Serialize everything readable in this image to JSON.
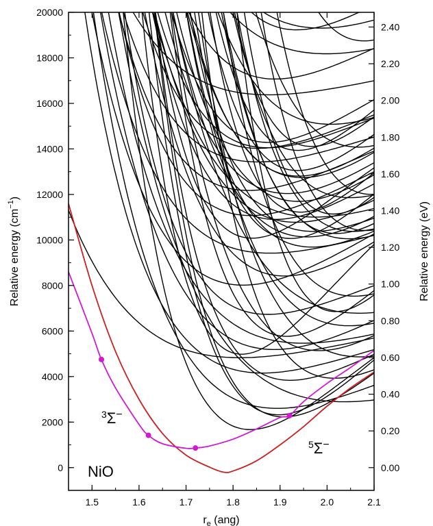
{
  "chart_data": {
    "type": "line",
    "xlabel": "r",
    "xlabel_sub": "e",
    "xlabel_unit": " (ang)",
    "ylabel_left": "Relative energy (cm",
    "ylabel_left_sup": "−1",
    "ylabel_left_close": ")",
    "ylabel_right": "Relative energy (eV)",
    "xlim": [
      1.45,
      2.1
    ],
    "ylim": [
      -1000,
      20000
    ],
    "y2lim": [
      -0.124,
      2.48
    ],
    "x_ticks": [
      "1.5",
      "1.6",
      "1.7",
      "1.8",
      "1.9",
      "2.0",
      "2.1"
    ],
    "y_ticks": [
      "0",
      "2000",
      "4000",
      "6000",
      "8000",
      "10000",
      "12000",
      "14000",
      "16000",
      "18000",
      "20000"
    ],
    "y2_ticks": [
      "0.00",
      "0.20",
      "0.40",
      "0.60",
      "0.80",
      "1.00",
      "1.20",
      "1.40",
      "1.60",
      "1.80",
      "2.00",
      "2.20",
      "2.40"
    ],
    "molecule_label": "NiO",
    "series": [
      {
        "id": "5sigma",
        "label_sup": "5",
        "label_main": "Σ",
        "label_charge": "−",
        "color": "#cc1f1f",
        "x": [
          1.45,
          1.5,
          1.55,
          1.6,
          1.65,
          1.7,
          1.75,
          1.78,
          1.8,
          1.85,
          1.9,
          1.95,
          2.0,
          2.05,
          2.1
        ],
        "y": [
          11600,
          8000,
          5100,
          3000,
          1500,
          550,
          20,
          -200,
          -150,
          300,
          1000,
          1800,
          2700,
          3500,
          4200
        ]
      },
      {
        "id": "3sigma",
        "label_sup": "3",
        "label_main": "Σ",
        "label_charge": "−",
        "color": "#d218d2",
        "x": [
          1.45,
          1.5,
          1.52,
          1.55,
          1.6,
          1.62,
          1.65,
          1.7,
          1.72,
          1.75,
          1.8,
          1.85,
          1.9,
          1.92,
          1.95,
          2.0,
          2.05,
          2.1
        ],
        "y": [
          8600,
          5900,
          4750,
          3500,
          1900,
          1420,
          1050,
          850,
          860,
          950,
          1250,
          1700,
          2200,
          2280,
          2900,
          3700,
          4400,
          5150
        ],
        "markers_x": [
          1.52,
          1.62,
          1.72,
          1.92
        ],
        "markers_y": [
          4750,
          1420,
          860,
          2280
        ]
      }
    ],
    "excited_states_count": 60,
    "excited_states_color": "#000000"
  }
}
